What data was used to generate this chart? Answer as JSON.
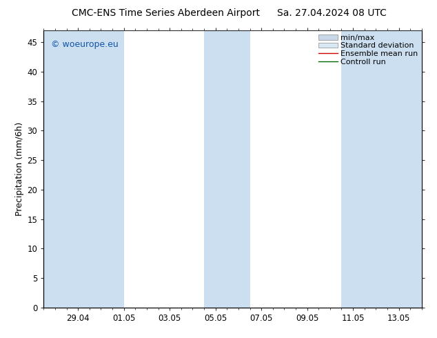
{
  "title_left": "CMC-ENS Time Series Aberdeen Airport",
  "title_right": "Sa. 27.04.2024 08 UTC",
  "ylabel": "Precipitation (mm/6h)",
  "watermark": "© woeurope.eu",
  "ylim": [
    0,
    47
  ],
  "yticks": [
    0,
    5,
    10,
    15,
    20,
    25,
    30,
    35,
    40,
    45
  ],
  "xlim": [
    0,
    16.5
  ],
  "x_tick_labels": [
    "29.04",
    "01.05",
    "03.05",
    "05.05",
    "07.05",
    "09.05",
    "11.05",
    "13.05"
  ],
  "x_tick_positions": [
    1.5,
    3.5,
    5.5,
    7.5,
    9.5,
    11.5,
    13.5,
    15.5
  ],
  "shaded_bands": [
    [
      0,
      1.5
    ],
    [
      1.5,
      3.5
    ],
    [
      7.0,
      9.0
    ],
    [
      13.0,
      15.0
    ],
    [
      15.0,
      16.5
    ]
  ],
  "band_color_dark": "#ccdff0",
  "band_color_light": "#ddeef8",
  "bg_color": "#ffffff",
  "plot_bg_color": "#ffffff",
  "tick_color": "#333333",
  "spine_color": "#333333",
  "title_fontsize": 10,
  "ylabel_fontsize": 9,
  "tick_fontsize": 8.5,
  "legend_fontsize": 8,
  "watermark_color": "#1155aa",
  "watermark_fontsize": 9
}
